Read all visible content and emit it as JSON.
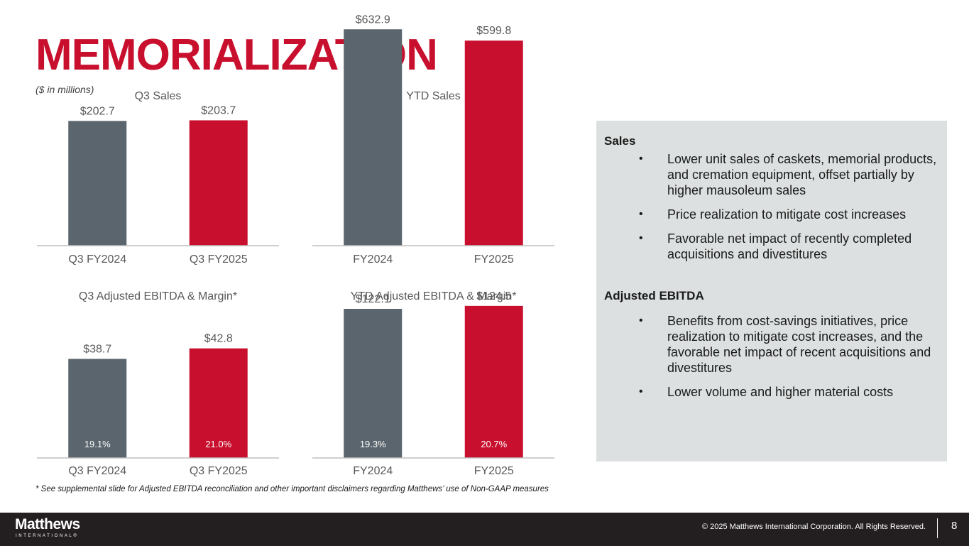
{
  "header": {
    "title": "MEMORIALIZATION",
    "units_note": "($ in millions)"
  },
  "colors": {
    "brand_red": "#c8102e",
    "prior_gray": "#5a656d",
    "axis": "#bfbfbf",
    "label_gray": "#595959",
    "panel_bg": "#dde0e0",
    "footer_bg": "#231f20"
  },
  "chart_data": [
    {
      "type": "bar",
      "title": "Q3 Sales",
      "categories": [
        "Q3 FY2024",
        "Q3 FY2025"
      ],
      "values": [
        202.7,
        203.7
      ],
      "value_labels": [
        "$202.7",
        "$203.7"
      ],
      "ylim": [
        0,
        375
      ]
    },
    {
      "type": "bar",
      "title": "YTD Sales",
      "categories": [
        "FY2024",
        "FY2025"
      ],
      "values": [
        632.9,
        599.8
      ],
      "value_labels": [
        "$632.9",
        "$599.8"
      ],
      "ylim": [
        0,
        675
      ]
    },
    {
      "type": "bar",
      "title": "Q3 Adjusted EBITDA & Margin*",
      "categories": [
        "Q3 FY2024",
        "Q3 FY2025"
      ],
      "values": [
        38.7,
        42.8
      ],
      "value_labels": [
        "$38.7",
        "$42.8"
      ],
      "margins": [
        "19.1%",
        "21.0%"
      ],
      "ylim": [
        0,
        62.4
      ]
    },
    {
      "type": "bar",
      "title": "YTD Adjusted EBITDA & Margin*",
      "categories": [
        "FY2024",
        "FY2025"
      ],
      "values": [
        122.1,
        124.5
      ],
      "value_labels": [
        "$122.1",
        "$124.5"
      ],
      "margins": [
        "19.3%",
        "20.7%"
      ],
      "ylim": [
        0,
        130.8
      ]
    }
  ],
  "commentary": {
    "sales_heading": "Sales",
    "sales_points": [
      "Lower unit sales of caskets, memorial products, and cremation equipment, offset partially by higher mausoleum sales",
      "Price realization to mitigate cost increases",
      "Favorable net impact of recently completed acquisitions and divestitures"
    ],
    "ebitda_heading": "Adjusted EBITDA",
    "ebitda_points": [
      "Benefits from cost-savings initiatives, price realization to mitigate cost increases, and the favorable net impact of recent acquisitions and divestitures",
      "Lower volume and higher material costs"
    ],
    "bullet_char": "•"
  },
  "footnote": "* See supplemental slide for Adjusted EBITDA reconciliation and other important disclaimers regarding Matthews’ use of Non-GAAP measures",
  "footer": {
    "logo_name": "Matthews",
    "logo_subtitle": "INTERNATIONAL®",
    "copyright": "© 2025 Matthews International Corporation. All Rights Reserved.",
    "page_number": "8"
  }
}
